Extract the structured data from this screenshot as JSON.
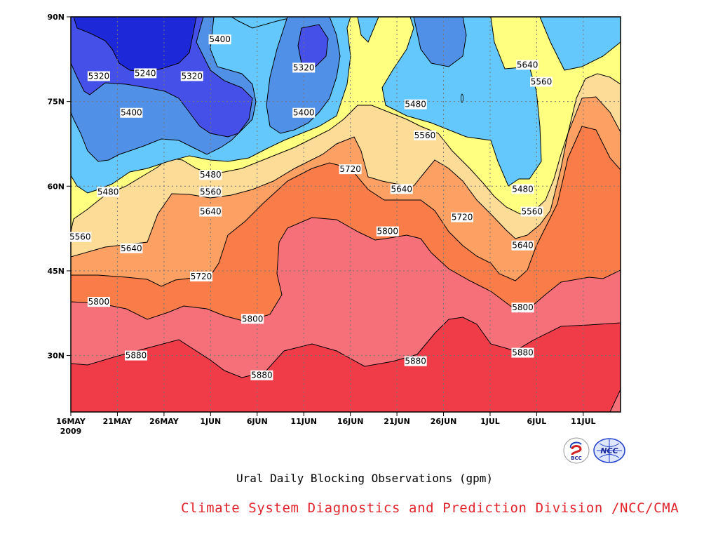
{
  "chart_data": {
    "type": "contour",
    "title": "Ural Daily Blocking Observations (gpm)",
    "x_ticks": [
      "16MAY",
      "21MAY",
      "26MAY",
      "1JUN",
      "6JUN",
      "11JUN",
      "16JUN",
      "21JUN",
      "26JUN",
      "1JUL",
      "6JUL",
      "11JUL"
    ],
    "x_year_label": "2009",
    "y_ticks": [
      "30N",
      "45N",
      "60N",
      "75N",
      "90N"
    ],
    "y_tick_values": [
      30,
      45,
      60,
      75,
      90
    ],
    "ylim": [
      20,
      90
    ],
    "contour_levels": [
      5240,
      5320,
      5400,
      5480,
      5560,
      5640,
      5720,
      5800,
      5880
    ],
    "contour_labels": [
      {
        "text": "5240",
        "day": 8,
        "lat": 80
      },
      {
        "text": "5320",
        "day": 3,
        "lat": 79.5
      },
      {
        "text": "5320",
        "day": 13,
        "lat": 79.5
      },
      {
        "text": "5320",
        "day": 25,
        "lat": 81
      },
      {
        "text": "5400",
        "day": 16,
        "lat": 86
      },
      {
        "text": "5400",
        "day": 6.5,
        "lat": 73
      },
      {
        "text": "5400",
        "day": 25,
        "lat": 73
      },
      {
        "text": "5480",
        "day": 4,
        "lat": 59
      },
      {
        "text": "5480",
        "day": 15,
        "lat": 62
      },
      {
        "text": "5480",
        "day": 37,
        "lat": 74.5
      },
      {
        "text": "5480",
        "day": 48.5,
        "lat": 59.5
      },
      {
        "text": "5560",
        "day": 1,
        "lat": 51
      },
      {
        "text": "5560",
        "day": 15,
        "lat": 59
      },
      {
        "text": "5560",
        "day": 38,
        "lat": 69
      },
      {
        "text": "5560",
        "day": 49.5,
        "lat": 55.5
      },
      {
        "text": "5560",
        "day": 50.5,
        "lat": 78.5
      },
      {
        "text": "5640",
        "day": 6.5,
        "lat": 49
      },
      {
        "text": "5640",
        "day": 15,
        "lat": 55.5
      },
      {
        "text": "5640",
        "day": 35.5,
        "lat": 59.5
      },
      {
        "text": "5640",
        "day": 48.5,
        "lat": 49.5
      },
      {
        "text": "5640",
        "day": 49,
        "lat": 81.5
      },
      {
        "text": "5720",
        "day": 14,
        "lat": 44
      },
      {
        "text": "5720",
        "day": 30,
        "lat": 63
      },
      {
        "text": "5720",
        "day": 42,
        "lat": 54.5
      },
      {
        "text": "5800",
        "day": 3,
        "lat": 39.5
      },
      {
        "text": "5800",
        "day": 19.5,
        "lat": 36.5
      },
      {
        "text": "5800",
        "day": 34,
        "lat": 52
      },
      {
        "text": "5800",
        "day": 48.5,
        "lat": 38.5
      },
      {
        "text": "5880",
        "day": 7,
        "lat": 30
      },
      {
        "text": "5880",
        "day": 20.5,
        "lat": 26.5
      },
      {
        "text": "5880",
        "day": 37,
        "lat": 29
      },
      {
        "text": "5880",
        "day": 48.5,
        "lat": 30.5
      }
    ]
  },
  "footer": "Climate System Diagnostics and Prediction Division /NCC/CMA",
  "logos": {
    "left_text": "BCC",
    "right_text": "NCC"
  },
  "colors": {
    "c5880": "#f03c48",
    "c5800": "#f6707a",
    "c5720": "#fa7c48",
    "c5640": "#fca064",
    "c5560": "#fddc98",
    "c5480": "#ffff80",
    "c5400": "#64c8fc",
    "c5320": "#5090e6",
    "c5240": "#4450e8",
    "c5160": "#1d28d8"
  }
}
